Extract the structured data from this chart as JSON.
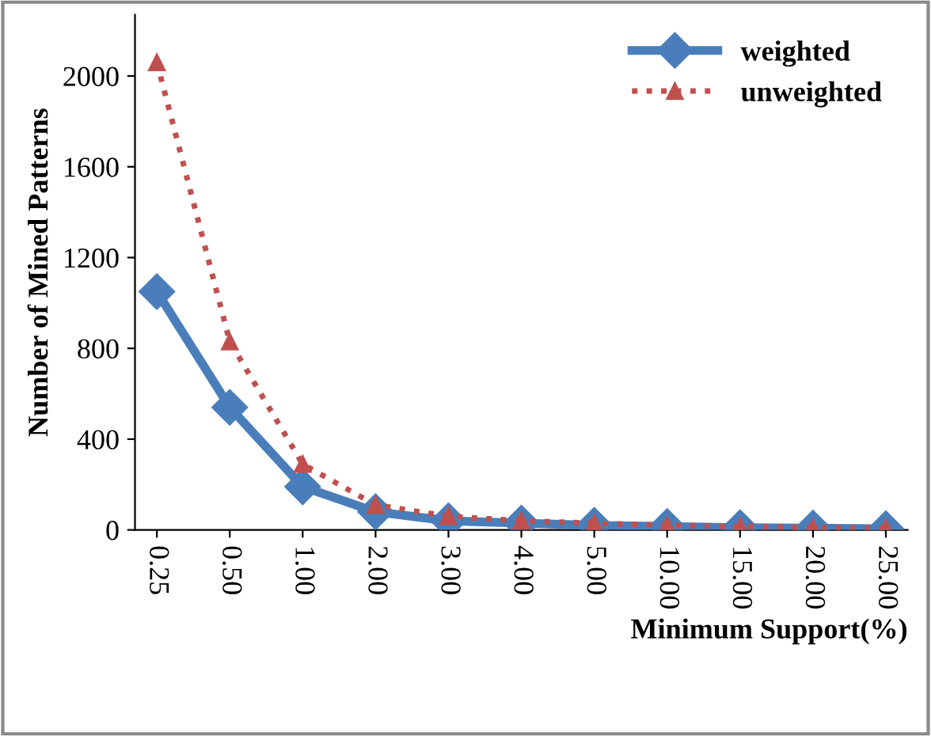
{
  "chart_data": {
    "type": "line",
    "xlabel": "Minimum Support(%)",
    "ylabel": "Number of Mined Patterns",
    "categories": [
      "0.25",
      "0.50",
      "1.00",
      "2.00",
      "3.00",
      "4.00",
      "5.00",
      "10.00",
      "15.00",
      "20.00",
      "25.00"
    ],
    "series": [
      {
        "name": "weighted",
        "color": "#4a7ebb",
        "marker": "diamond",
        "line_style": "solid",
        "values": [
          1050,
          540,
          190,
          80,
          40,
          30,
          20,
          15,
          10,
          8,
          5
        ]
      },
      {
        "name": "unweighted",
        "color": "#c0504d",
        "marker": "triangle",
        "line_style": "dotted",
        "values": [
          2060,
          830,
          290,
          110,
          60,
          40,
          30,
          20,
          15,
          10,
          8
        ]
      }
    ],
    "ylim": [
      0,
      2270
    ],
    "yticks": [
      0,
      400,
      800,
      1200,
      1600,
      2000
    ],
    "grid": false,
    "legend": "top right"
  }
}
